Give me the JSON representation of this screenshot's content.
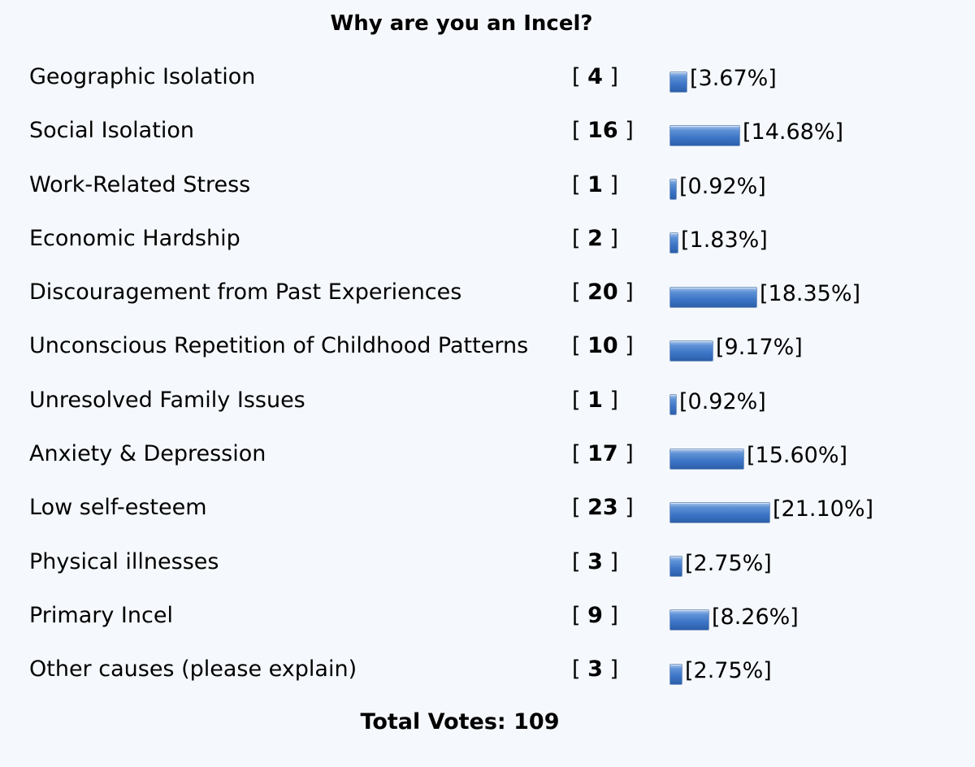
{
  "poll": {
    "title": "Why are you an Incel?",
    "total_label": "Total Votes: 109",
    "bar_color": "#3d75c6",
    "options": [
      {
        "label": "Geographic Isolation",
        "votes": "4",
        "percent": "[3.67%]",
        "share": 3.67
      },
      {
        "label": "Social Isolation",
        "votes": "16",
        "percent": "[14.68%]",
        "share": 14.68
      },
      {
        "label": "Work-Related Stress",
        "votes": "1",
        "percent": "[0.92%]",
        "share": 0.92
      },
      {
        "label": "Economic Hardship",
        "votes": "2",
        "percent": "[1.83%]",
        "share": 1.83
      },
      {
        "label": "Discouragement from Past Experiences",
        "votes": "20",
        "percent": "[18.35%]",
        "share": 18.35
      },
      {
        "label": "Unconscious Repetition of Childhood Patterns",
        "votes": "10",
        "percent": "[9.17%]",
        "share": 9.17
      },
      {
        "label": "Unresolved Family Issues",
        "votes": "1",
        "percent": "[0.92%]",
        "share": 0.92
      },
      {
        "label": "Anxiety & Depression",
        "votes": "17",
        "percent": "[15.60%]",
        "share": 15.6
      },
      {
        "label": "Low self-esteem",
        "votes": "23",
        "percent": "[21.10%]",
        "share": 21.1
      },
      {
        "label": "Physical illnesses",
        "votes": "3",
        "percent": "[2.75%]",
        "share": 2.75
      },
      {
        "label": "Primary Incel",
        "votes": "9",
        "percent": "[8.26%]",
        "share": 8.26
      },
      {
        "label": "Other causes (please explain)",
        "votes": "3",
        "percent": "[2.75%]",
        "share": 2.75
      }
    ]
  }
}
